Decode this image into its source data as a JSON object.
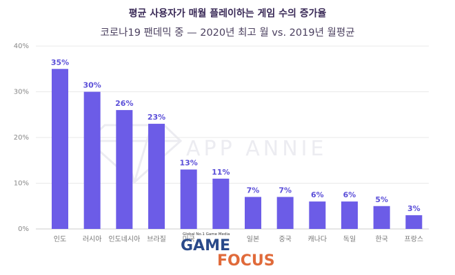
{
  "chart_data": {
    "type": "bar",
    "title": "평균 사용자가 매월 플레이하는 게임 수의 증가율",
    "subtitle": "코로나19 팬데믹 중 — 2020년 최고 월 vs. 2019년 월평균",
    "categories": [
      "인도",
      "러시아",
      "인도네시아",
      "브라질",
      "미국",
      "",
      "일본",
      "중국",
      "캐나다",
      "독일",
      "한국",
      "프랑스"
    ],
    "values": [
      35,
      30,
      26,
      23,
      13,
      11,
      7,
      7,
      6,
      6,
      5,
      3
    ],
    "value_labels": [
      "35%",
      "30%",
      "26%",
      "23%",
      "13%",
      "11%",
      "7%",
      "7%",
      "6%",
      "6%",
      "5%",
      "3%"
    ],
    "yticks": [
      0,
      10,
      20,
      30,
      40
    ],
    "ytick_labels": [
      "0%",
      "10%",
      "20%",
      "30%",
      "40%"
    ],
    "ylim": [
      0,
      40
    ],
    "grid": true,
    "bar_color": "#6c5ce7",
    "label_color": "#5b4fd8"
  },
  "watermark": {
    "text": "APP ANNIE"
  },
  "logo": {
    "tagline": "Global No.1 Game Media",
    "word1": "GAME",
    "word2": "FOCUS"
  }
}
